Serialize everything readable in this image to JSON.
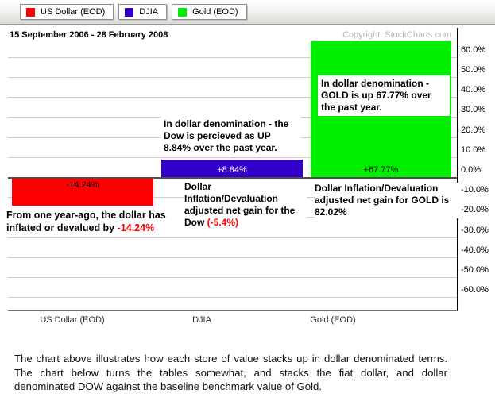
{
  "legend": {
    "items": [
      {
        "label": "US Dollar (EOD)",
        "color": "#ff0000"
      },
      {
        "label": "DJIA",
        "color": "#3300cc"
      },
      {
        "label": "Gold (EOD)",
        "color": "#00ee00"
      }
    ]
  },
  "chart": {
    "date_range": "15 September 2006 - 28 February 2008",
    "copyright": "Copyright, StockCharts.com"
  },
  "chart_data": {
    "type": "bar",
    "categories": [
      "US Dollar (EOD)",
      "DJIA",
      "Gold (EOD)"
    ],
    "values": [
      -14.24,
      8.84,
      67.77
    ],
    "bar_labels": [
      "-14.24%",
      "+8.84%",
      "+67.77%"
    ],
    "bar_colors": [
      "#ff0000",
      "#3300cc",
      "#00ee00"
    ],
    "bar_label_colors": [
      "#000000",
      "#ffffff",
      "#000000"
    ],
    "title": "",
    "xlabel": "",
    "ylabel": "",
    "ylim": [
      -65,
      65
    ],
    "grid": true,
    "yticks": [
      "60.0%",
      "50.0%",
      "40.0%",
      "30.0%",
      "20.0%",
      "10.0%",
      "0.0%",
      "-10.0%",
      "-20.0%",
      "-30.0%",
      "-40.0%",
      "-50.0%",
      "-60.0%"
    ],
    "legend_position": "top"
  },
  "annotations": {
    "gold_box": "In dollar denomination - GOLD is up 67.77% over the past year.",
    "dow_box": "In dollar denomination - the Dow is percieved as UP 8.84% over the past year.",
    "dollar_note_prefix": "From one year-ago, the dollar has inflated or devalued by ",
    "dollar_note_value": "-14.24%",
    "dow_note_prefix": "Dollar Inflation/Devaluation adjusted net gain  for the Dow ",
    "dow_note_value": "(-5.4%)",
    "gold_note": "Dollar Inflation/Devaluation adjusted net gain for GOLD is 82.02%"
  },
  "footer": {
    "paragraph": "The chart above illustrates how each store of value stacks up in dollar denominated terms.  The chart below turns the tables somewhat, and stacks the fiat dollar, and dollar denominated DOW against the baseline benchmark value of Gold."
  }
}
